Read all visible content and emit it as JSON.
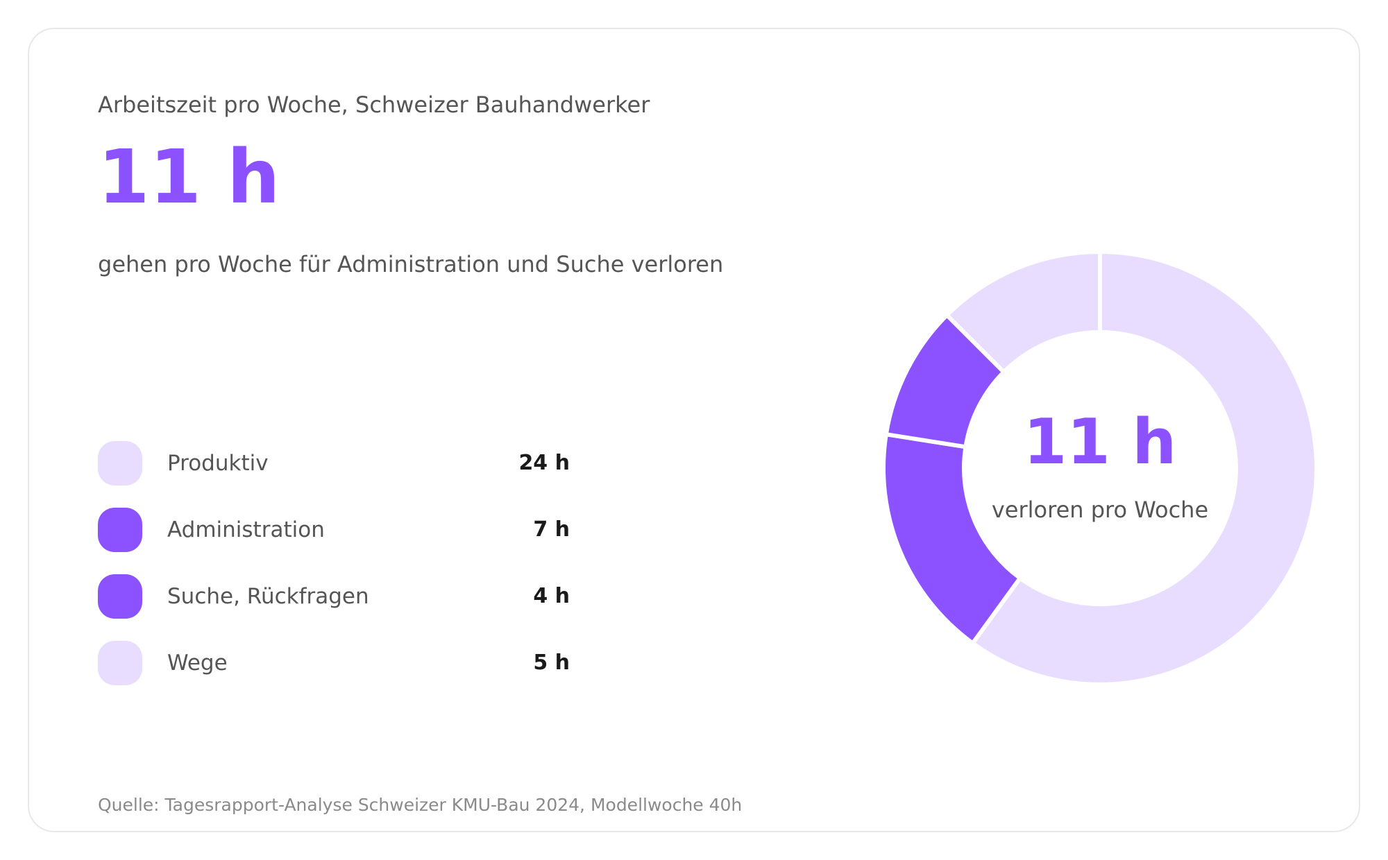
{
  "subtitle": "Arbeitszeit pro Woche, Schweizer Bauhandwerker",
  "headline": "11 h",
  "description": "gehen pro Woche für Administration und Suche verloren",
  "source": "Quelle: Tagesrapport-Analyse Schweizer KMU-Bau 2024, Modellwoche 40h",
  "colors": {
    "accent": "#8c52ff",
    "light": "#e8ddff",
    "text": "#555555",
    "value_text": "#1a1a1a"
  },
  "legend": [
    {
      "label": "Produktiv",
      "value": "24 h",
      "color": "#e8ddff"
    },
    {
      "label": "Administration",
      "value": "7 h",
      "color": "#8c52ff"
    },
    {
      "label": "Suche, Rückfragen",
      "value": "4 h",
      "color": "#8c52ff"
    },
    {
      "label": "Wege",
      "value": "5 h",
      "color": "#e8ddff"
    }
  ],
  "chart_data": {
    "type": "pie",
    "variant": "donut",
    "title": "Arbeitszeit pro Woche, Schweizer Bauhandwerker",
    "categories": [
      "Produktiv",
      "Administration",
      "Suche, Rückfragen",
      "Wege"
    ],
    "values": [
      24,
      7,
      4,
      5
    ],
    "unit": "h",
    "total": 40,
    "colors": [
      "#e8ddff",
      "#8c52ff",
      "#8c52ff",
      "#e8ddff"
    ],
    "center_value": "11 h",
    "center_label": "verloren pro Woche"
  }
}
